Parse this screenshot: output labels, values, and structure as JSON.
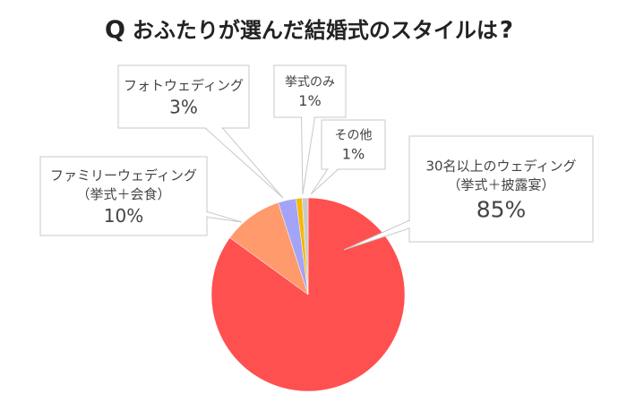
{
  "title": {
    "marker": "Q",
    "text": "おふたりが選んだ結婚式のスタイルは",
    "question_mark": "?"
  },
  "chart_data": {
    "type": "pie",
    "title": "おふたりが選んだ結婚式のスタイルは?",
    "start": "top-center, clockwise",
    "slices": [
      {
        "label_lines": [
          "30名以上のウェディング",
          "（挙式＋披露宴）"
        ],
        "value": 85,
        "value_text": "85%",
        "color": "#ff5050"
      },
      {
        "label_lines": [
          "ファミリーウェディング",
          "（挙式＋会食）"
        ],
        "value": 10,
        "value_text": "10%",
        "color": "#ff9a6c"
      },
      {
        "label_lines": [
          "フォトウェディング"
        ],
        "value": 3,
        "value_text": "3%",
        "color": "#a3a3f7"
      },
      {
        "label_lines": [
          "挙式のみ"
        ],
        "value": 1,
        "value_text": "1%",
        "color": "#f5b700"
      },
      {
        "label_lines": [
          "その他"
        ],
        "value": 1,
        "value_text": "1%",
        "color": "#c9c9c9"
      }
    ]
  }
}
